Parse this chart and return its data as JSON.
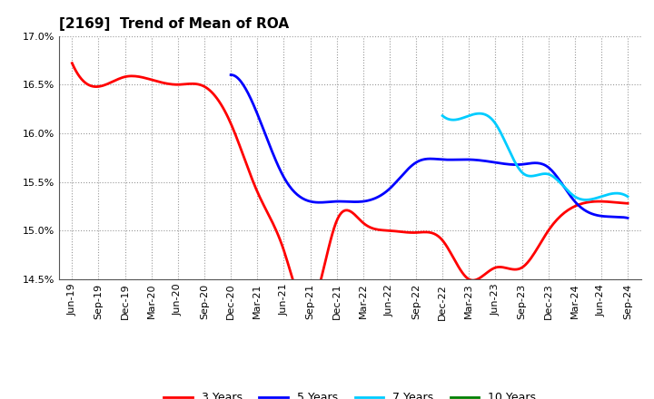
{
  "title": "[2169]  Trend of Mean of ROA",
  "ylim": [
    0.145,
    0.17
  ],
  "yticks": [
    0.145,
    0.15,
    0.155,
    0.16,
    0.165,
    0.17
  ],
  "ytick_labels": [
    "14.5%",
    "15.0%",
    "15.5%",
    "16.0%",
    "16.5%",
    "17.0%"
  ],
  "x_labels": [
    "Jun-19",
    "Sep-19",
    "Dec-19",
    "Mar-20",
    "Jun-20",
    "Sep-20",
    "Dec-20",
    "Mar-21",
    "Jun-21",
    "Sep-21",
    "Dec-21",
    "Mar-22",
    "Jun-22",
    "Sep-22",
    "Dec-22",
    "Mar-23",
    "Jun-23",
    "Sep-23",
    "Dec-23",
    "Mar-24",
    "Jun-24",
    "Sep-24"
  ],
  "series_3y": {
    "label": "3 Years",
    "color": "#ff0000",
    "x": [
      0,
      1,
      2,
      3,
      4,
      5,
      6,
      7,
      8,
      9,
      10,
      11,
      12,
      13,
      14,
      15,
      16,
      17,
      18,
      19,
      20,
      21
    ],
    "y": [
      0.1672,
      0.1648,
      0.1658,
      0.1655,
      0.165,
      0.1648,
      0.161,
      0.154,
      0.148,
      0.142,
      0.151,
      0.1508,
      0.15,
      0.1498,
      0.149,
      0.145,
      0.1462,
      0.1462,
      0.15,
      0.1525,
      0.153,
      0.1528
    ]
  },
  "series_5y": {
    "label": "5 Years",
    "color": "#0000ff",
    "x": [
      6,
      7,
      8,
      9,
      10,
      11,
      12,
      13,
      14,
      15,
      16,
      17,
      18,
      19,
      20,
      21
    ],
    "y": [
      0.166,
      0.162,
      0.1555,
      0.153,
      0.153,
      0.153,
      0.1543,
      0.157,
      0.1573,
      0.1573,
      0.157,
      0.1568,
      0.1565,
      0.153,
      0.1515,
      0.1513
    ]
  },
  "series_7y": {
    "label": "7 Years",
    "color": "#00ccff",
    "x": [
      14,
      15,
      16,
      17,
      18,
      19,
      20,
      21
    ],
    "y": [
      0.1618,
      0.1618,
      0.161,
      0.156,
      0.1558,
      0.1535,
      0.1535,
      0.1535
    ]
  },
  "series_10y": {
    "label": "10 Years",
    "color": "#008000",
    "x": [],
    "y": []
  },
  "background_color": "#ffffff",
  "grid_color": "#999999",
  "title_fontsize": 11,
  "tick_fontsize": 8,
  "legend_fontsize": 9
}
